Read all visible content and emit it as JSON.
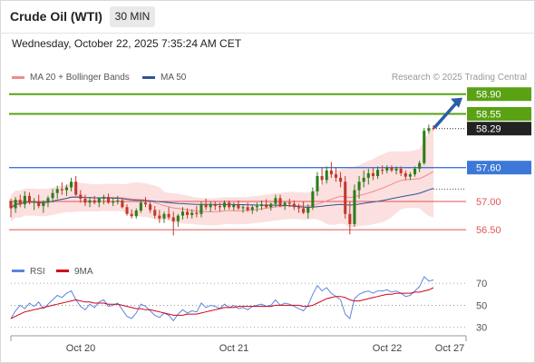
{
  "header": {
    "title": "Crude Oil (WTI)",
    "interval": "30 MIN",
    "datetime": "Wednesday, October 22, 2025 7:35:24 AM CET"
  },
  "legend": {
    "items": [
      {
        "label": "MA 20 + Bollinger Bands",
        "color": "#f08a8a"
      },
      {
        "label": "MA 50",
        "color": "#2f5597"
      }
    ],
    "credit": "Research © 2025 Trading Central"
  },
  "colors": {
    "up": "#2e7d1a",
    "down": "#c0392b",
    "target": "#5aa214",
    "pivot": "#3d78d8",
    "support": "#e35555",
    "last": "#222222",
    "band": "#fbd2d2",
    "ma20": "#f08a8a",
    "ma50": "#2f5597",
    "rsi": "#5b86dd",
    "rsi_ma": "#d0021b"
  },
  "chart_data": [
    {
      "type": "candlestick",
      "title": "Crude Oil (WTI)",
      "timeframe": "30 MIN",
      "ylim": [
        56.23,
        59.04
      ],
      "x_ticks": [
        "Oct 20",
        "Oct 21",
        "Oct 22",
        "Oct 27"
      ],
      "levels": [
        {
          "label": "58.90",
          "value": 58.9,
          "kind": "target"
        },
        {
          "label": "58.55",
          "value": 58.55,
          "kind": "target"
        },
        {
          "label": "58.29",
          "value": 58.29,
          "kind": "last"
        },
        {
          "label": "57.60",
          "value": 57.6,
          "kind": "pivot"
        },
        {
          "label": "57.00",
          "value": 57.0,
          "kind": "support"
        },
        {
          "label": "56.50",
          "value": 56.5,
          "kind": "support"
        }
      ],
      "candles_ohlc": [
        [
          57.01,
          57.05,
          56.72,
          56.88
        ],
        [
          56.88,
          57.08,
          56.8,
          57.03
        ],
        [
          57.03,
          57.12,
          56.9,
          56.95
        ],
        [
          56.95,
          57.18,
          56.88,
          57.1
        ],
        [
          57.1,
          57.16,
          56.95,
          56.98
        ],
        [
          56.98,
          57.06,
          56.85,
          57.0
        ],
        [
          57.0,
          57.12,
          56.88,
          56.92
        ],
        [
          56.92,
          57.02,
          56.8,
          56.98
        ],
        [
          56.98,
          57.1,
          56.9,
          57.06
        ],
        [
          57.06,
          57.22,
          56.98,
          57.15
        ],
        [
          57.15,
          57.28,
          57.05,
          57.22
        ],
        [
          57.22,
          57.34,
          57.12,
          57.2
        ],
        [
          57.2,
          57.3,
          57.1,
          57.25
        ],
        [
          57.25,
          57.42,
          57.18,
          57.35
        ],
        [
          57.35,
          57.45,
          57.1,
          57.12
        ],
        [
          57.12,
          57.2,
          56.98,
          57.05
        ],
        [
          57.05,
          57.12,
          56.92,
          56.98
        ],
        [
          56.98,
          57.08,
          56.9,
          57.02
        ],
        [
          57.02,
          57.1,
          56.95,
          56.98
        ],
        [
          56.98,
          57.08,
          56.9,
          57.05
        ],
        [
          57.05,
          57.12,
          56.95,
          57.08
        ],
        [
          57.08,
          57.14,
          56.96,
          56.98
        ],
        [
          56.98,
          57.06,
          56.92,
          57.0
        ],
        [
          57.0,
          57.1,
          56.95,
          57.02
        ],
        [
          57.02,
          57.06,
          56.88,
          56.9
        ],
        [
          56.9,
          56.95,
          56.75,
          56.78
        ],
        [
          56.78,
          56.86,
          56.7,
          56.74
        ],
        [
          56.74,
          56.88,
          56.7,
          56.84
        ],
        [
          56.84,
          57.02,
          56.8,
          56.98
        ],
        [
          56.98,
          57.08,
          56.9,
          56.95
        ],
        [
          56.95,
          57.0,
          56.8,
          56.85
        ],
        [
          56.85,
          56.92,
          56.7,
          56.75
        ],
        [
          56.75,
          56.85,
          56.62,
          56.7
        ],
        [
          56.7,
          56.82,
          56.62,
          56.78
        ],
        [
          56.78,
          56.9,
          56.68,
          56.72
        ],
        [
          56.72,
          56.82,
          56.4,
          56.65
        ],
        [
          56.65,
          56.78,
          56.55,
          56.75
        ],
        [
          56.75,
          56.9,
          56.68,
          56.82
        ],
        [
          56.82,
          56.88,
          56.7,
          56.76
        ],
        [
          56.76,
          56.86,
          56.7,
          56.8
        ],
        [
          56.8,
          56.92,
          56.72,
          56.78
        ],
        [
          56.78,
          57.0,
          56.72,
          56.95
        ],
        [
          56.95,
          57.05,
          56.85,
          56.9
        ],
        [
          56.9,
          57.0,
          56.82,
          56.95
        ],
        [
          56.95,
          57.0,
          56.85,
          56.92
        ],
        [
          56.92,
          56.98,
          56.82,
          56.9
        ],
        [
          56.9,
          57.02,
          56.85,
          56.98
        ],
        [
          56.98,
          57.02,
          56.86,
          56.9
        ],
        [
          56.9,
          56.98,
          56.84,
          56.94
        ],
        [
          56.94,
          57.02,
          56.85,
          56.88
        ],
        [
          56.88,
          56.95,
          56.8,
          56.9
        ],
        [
          56.9,
          56.98,
          56.82,
          56.85
        ],
        [
          56.85,
          56.94,
          56.78,
          56.9
        ],
        [
          56.9,
          56.98,
          56.82,
          56.92
        ],
        [
          56.92,
          57.02,
          56.85,
          56.95
        ],
        [
          56.95,
          57.04,
          56.88,
          56.9
        ],
        [
          56.9,
          56.98,
          56.84,
          56.96
        ],
        [
          56.96,
          57.12,
          56.9,
          57.06
        ],
        [
          57.06,
          57.12,
          56.9,
          56.92
        ],
        [
          56.92,
          57.0,
          56.85,
          56.98
        ],
        [
          56.98,
          57.05,
          56.9,
          56.96
        ],
        [
          56.96,
          57.02,
          56.85,
          56.9
        ],
        [
          56.9,
          56.96,
          56.8,
          56.88
        ],
        [
          56.88,
          57.0,
          56.78,
          56.8
        ],
        [
          56.8,
          56.95,
          56.7,
          56.9
        ],
        [
          56.9,
          57.25,
          56.85,
          57.18
        ],
        [
          57.18,
          57.52,
          57.1,
          57.45
        ],
        [
          57.45,
          57.6,
          57.3,
          57.38
        ],
        [
          57.38,
          57.62,
          57.32,
          57.55
        ],
        [
          57.55,
          57.7,
          57.42,
          57.48
        ],
        [
          57.48,
          57.6,
          57.35,
          57.42
        ],
        [
          57.42,
          57.52,
          57.25,
          57.35
        ],
        [
          57.35,
          57.45,
          56.7,
          56.78
        ],
        [
          56.78,
          57.0,
          56.42,
          56.6
        ],
        [
          56.6,
          57.3,
          56.55,
          57.2
        ],
        [
          57.2,
          57.45,
          57.05,
          57.35
        ],
        [
          57.35,
          57.55,
          57.25,
          57.42
        ],
        [
          57.42,
          57.58,
          57.3,
          57.5
        ],
        [
          57.5,
          57.6,
          57.38,
          57.45
        ],
        [
          57.45,
          57.62,
          57.4,
          57.56
        ],
        [
          57.56,
          57.64,
          57.48,
          57.55
        ],
        [
          57.55,
          57.64,
          57.5,
          57.6
        ],
        [
          57.6,
          57.64,
          57.52,
          57.55
        ],
        [
          57.55,
          57.62,
          57.48,
          57.58
        ],
        [
          57.58,
          57.62,
          57.45,
          57.5
        ],
        [
          57.5,
          57.55,
          57.38,
          57.44
        ],
        [
          57.44,
          57.52,
          57.38,
          57.48
        ],
        [
          57.48,
          57.62,
          57.44,
          57.58
        ],
        [
          57.58,
          57.72,
          57.52,
          57.68
        ],
        [
          57.68,
          58.3,
          57.65,
          58.25
        ],
        [
          58.25,
          58.36,
          58.2,
          58.3
        ],
        [
          58.3,
          58.35,
          58.26,
          58.29
        ]
      ]
    },
    {
      "type": "line",
      "title": "RSI",
      "series": [
        {
          "name": "RSI",
          "color": "#5b86dd"
        },
        {
          "name": "9MA",
          "color": "#d0021b"
        }
      ],
      "y_ticks": [
        70,
        50,
        30
      ],
      "ylim": [
        24,
        80
      ],
      "rsi_values": [
        38,
        45,
        50,
        47,
        52,
        49,
        53,
        47,
        51,
        55,
        59,
        57,
        61,
        63,
        55,
        49,
        46,
        51,
        48,
        53,
        55,
        49,
        50,
        52,
        46,
        40,
        38,
        43,
        51,
        49,
        45,
        41,
        39,
        43,
        41,
        36,
        42,
        46,
        43,
        45,
        44,
        52,
        48,
        50,
        49,
        47,
        51,
        48,
        50,
        47,
        48,
        46,
        49,
        50,
        51,
        49,
        50,
        55,
        50,
        52,
        51,
        49,
        47,
        45,
        50,
        60,
        68,
        63,
        66,
        61,
        58,
        55,
        42,
        38,
        56,
        60,
        62,
        63,
        61,
        63,
        63,
        64,
        62,
        63,
        61,
        58,
        59,
        63,
        67,
        76,
        72,
        73
      ],
      "ma_values": [
        38,
        40,
        42,
        44,
        45,
        46,
        47,
        48,
        49,
        50,
        51,
        52,
        53,
        54,
        55,
        54,
        53,
        53,
        52,
        52,
        52,
        51,
        51,
        51,
        50,
        49,
        48,
        47,
        47,
        46,
        46,
        45,
        44,
        43,
        42,
        41,
        41,
        41,
        42,
        42,
        42,
        43,
        44,
        45,
        46,
        47,
        48,
        48,
        48,
        49,
        49,
        49,
        49,
        49,
        49,
        49,
        49,
        50,
        50,
        50,
        50,
        50,
        50,
        49,
        49,
        50,
        52,
        54,
        56,
        57,
        58,
        58,
        57,
        55,
        54,
        54,
        55,
        56,
        57,
        58,
        59,
        60,
        60,
        61,
        61,
        61,
        61,
        62,
        62,
        63,
        64,
        66
      ]
    }
  ]
}
